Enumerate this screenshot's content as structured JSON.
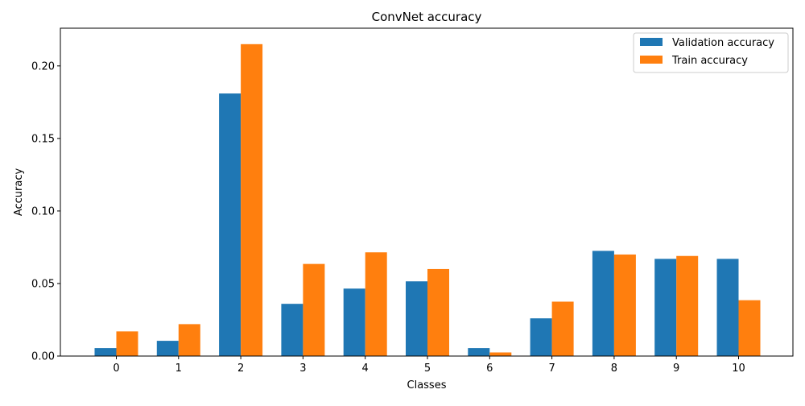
{
  "chart_data": {
    "type": "bar",
    "title": "ConvNet accuracy",
    "xlabel": "Classes",
    "ylabel": "Accuracy",
    "categories": [
      "0",
      "1",
      "2",
      "3",
      "4",
      "5",
      "6",
      "7",
      "8",
      "9",
      "10"
    ],
    "series": [
      {
        "name": "Validation accuracy",
        "color": "#1f77b4",
        "values": [
          0.0055,
          0.0105,
          0.181,
          0.036,
          0.0465,
          0.0515,
          0.0055,
          0.026,
          0.0725,
          0.067,
          0.067
        ]
      },
      {
        "name": "Train accuracy",
        "color": "#ff7f0e",
        "values": [
          0.017,
          0.022,
          0.215,
          0.0635,
          0.0715,
          0.06,
          0.0025,
          0.0375,
          0.07,
          0.069,
          0.0385
        ]
      }
    ],
    "ylim": [
      0,
      0.226
    ],
    "yticks": [
      "0.00",
      "0.05",
      "0.10",
      "0.15",
      "0.20"
    ],
    "grid": false,
    "legend_position": "top-right"
  }
}
